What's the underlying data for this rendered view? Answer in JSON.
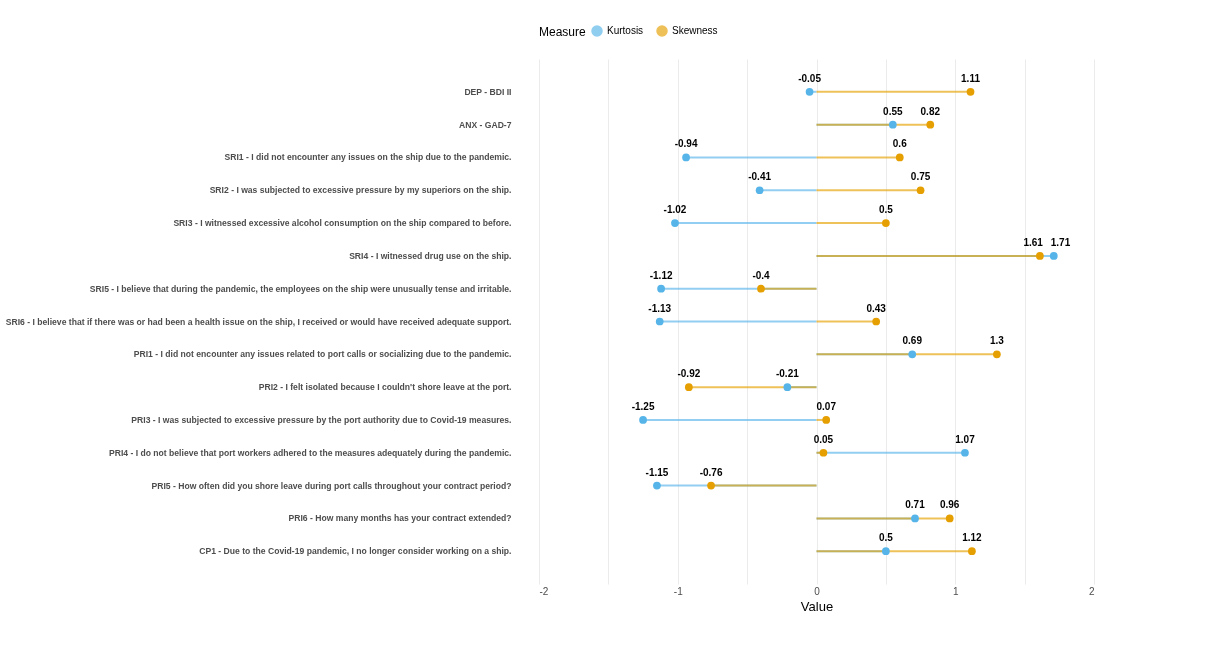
{
  "chart_data": {
    "type": "lollipop",
    "orientation": "horizontal",
    "xlabel": "Value",
    "legend_title": "Measure",
    "legend": "top",
    "grid": "x",
    "marker": "circle",
    "data_labels": true,
    "categories": [
      "DEP - BDI II",
      "ANX - GAD-7",
      "SRI1 - I did not encounter any issues on the ship due to the pandemic.",
      "SRI2 - I was subjected to excessive pressure by my superiors on the ship.",
      "SRI3 - I witnessed excessive alcohol consumption on the ship compared to before.",
      "SRI4 - I witnessed drug use on the ship.",
      "SRI5 - I believe that during the pandemic, the employees on the ship were unusually tense and irritable.",
      "SRI6 - I believe that if there was or had been a health issue on the ship, I received or would have received adequate support.",
      "PRI1 - I did not encounter any issues related to port calls or socializing due to the pandemic.",
      "PRI2 - I felt isolated because I couldn't shore leave at the port.",
      "PRI3 - I was subjected to excessive pressure by the port authority due to Covid-19 measures.",
      "PRI4 - I do not believe that port workers adhered to the measures adequately during the pandemic.",
      "PRI5 - How often did you shore leave during port calls throughout your contract period?",
      "PRI6 - How many months has your contract extended?",
      "CP1 - Due to the Covid-19 pandemic, I no longer consider working on a ship."
    ],
    "series": [
      {
        "name": "Kurtosis",
        "color": "#56b4e9",
        "values": [
          -0.05,
          0.55,
          -0.94,
          -0.41,
          -1.02,
          1.71,
          -1.12,
          -1.13,
          0.69,
          -0.21,
          -1.25,
          1.07,
          -1.15,
          0.71,
          0.5
        ]
      },
      {
        "name": "Skewness",
        "color": "#e69f00",
        "values": [
          1.11,
          0.82,
          0.6,
          0.75,
          0.5,
          1.61,
          -0.4,
          0.43,
          1.3,
          -0.92,
          0.07,
          0.05,
          -0.76,
          0.96,
          1.12
        ]
      }
    ],
    "xlim": [
      -2,
      2
    ],
    "xticks": [
      -2,
      {
        "value": -1.5,
        "label": null
      },
      -1,
      {
        "value": -0.5,
        "label": null
      },
      0,
      {
        "value": 0.5,
        "label": null
      },
      1,
      {
        "value": 1.5,
        "label": null
      },
      2
    ]
  }
}
